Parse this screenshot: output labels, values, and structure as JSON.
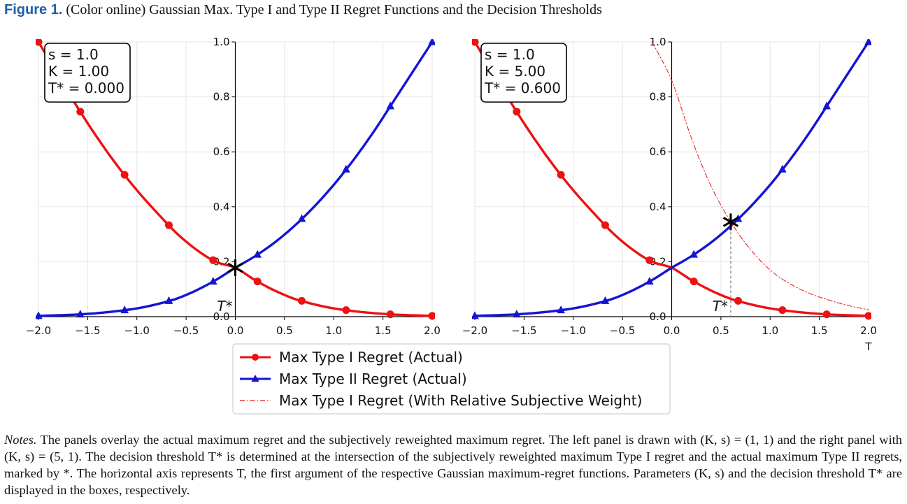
{
  "figure": {
    "label": "Figure 1.",
    "caption": "(Color online) Gaussian Max. Type I and Type II Regret Functions and the Decision Thresholds"
  },
  "notes": {
    "lead": "Notes.",
    "text": "The panels overlay the actual maximum regret and the subjectively reweighted maximum regret. The left panel is drawn with (K, s) = (1, 1) and the right panel with (K, s) = (5, 1). The decision threshold T* is determined at the intersection of the subjectively reweighted maximum Type I regret and the actual maximum Type II regrets, marked by *. The horizontal axis represents T, the first argument of the respective Gaussian maximum-regret functions. Parameters (K, s) and the decision threshold T* are displayed in the boxes, respectively."
  },
  "colors": {
    "type1": "#ee1111",
    "type2": "#1414d4",
    "weighted": "#ee1111",
    "marker": "#000000"
  },
  "legend": {
    "entries": [
      {
        "label": "Max Type I Regret (Actual)",
        "style": "red-line-dot"
      },
      {
        "label": "Max Type II Regret (Actual)",
        "style": "blue-line-triangle"
      },
      {
        "label": "Max Type I Regret (With Relative Subjective Weight)",
        "style": "red-dashdot"
      }
    ],
    "position": "below-center"
  },
  "chart_data": [
    {
      "type": "line",
      "panel": "left",
      "xlim": [
        -2.0,
        2.0
      ],
      "ylim": [
        0.0,
        1.0
      ],
      "xticks": [
        "−2.0",
        "−1.5",
        "−1.0",
        "−0.5",
        "0.0",
        "0.5",
        "1.0",
        "1.5",
        "2.0"
      ],
      "yticks": [
        "0.0",
        "0.2",
        "0.4",
        "0.6",
        "0.8",
        "1.0"
      ],
      "xlabel": "",
      "grid": true,
      "box": [
        "s = 1.0",
        "K = 1.00",
        "T* = 0.000"
      ],
      "threshold_label": "T*",
      "threshold": 0.0,
      "threshold_value": 0.178,
      "series": [
        {
          "name": "Max Type I Regret (Actual)",
          "x": [
            -2.0,
            -1.8,
            -1.6,
            -1.4,
            -1.2,
            -1.0,
            -0.8,
            -0.6,
            -0.4,
            -0.2,
            0.0,
            0.2,
            0.4,
            0.6,
            0.8,
            1.0,
            1.2,
            1.4,
            1.6,
            1.8,
            2.0
          ],
          "y": [
            1.0,
            0.88,
            0.76,
            0.65,
            0.55,
            0.46,
            0.38,
            0.305,
            0.245,
            0.2,
            0.178,
            0.133,
            0.095,
            0.065,
            0.045,
            0.03,
            0.02,
            0.013,
            0.008,
            0.005,
            0.003
          ],
          "markers_x": [
            -2.0,
            -1.575,
            -1.125,
            -0.675,
            -0.225,
            0.225,
            0.675,
            1.125,
            1.575,
            2.0
          ]
        },
        {
          "name": "Max Type II Regret (Actual)",
          "x": [
            -2.0,
            -1.8,
            -1.6,
            -1.4,
            -1.2,
            -1.0,
            -0.8,
            -0.6,
            -0.4,
            -0.2,
            0.0,
            0.2,
            0.4,
            0.6,
            0.8,
            1.0,
            1.2,
            1.4,
            1.6,
            1.8,
            2.0
          ],
          "y": [
            0.003,
            0.005,
            0.008,
            0.013,
            0.02,
            0.03,
            0.045,
            0.065,
            0.095,
            0.133,
            0.178,
            0.22,
            0.27,
            0.33,
            0.4,
            0.48,
            0.57,
            0.67,
            0.78,
            0.89,
            1.0
          ],
          "markers_x": [
            -2.0,
            -1.575,
            -1.125,
            -0.675,
            -0.225,
            0.225,
            0.675,
            1.125,
            1.575,
            2.0
          ]
        }
      ]
    },
    {
      "type": "line",
      "panel": "right",
      "xlim": [
        -2.0,
        2.0
      ],
      "ylim": [
        0.0,
        1.0
      ],
      "xticks": [
        "−2.0",
        "−1.5",
        "−1.0",
        "−0.5",
        "0.0",
        "0.5",
        "1.0",
        "1.5",
        "2.0"
      ],
      "yticks": [
        "0.0",
        "0.2",
        "0.4",
        "0.6",
        "0.8",
        "1.0"
      ],
      "xlabel": "T",
      "grid": true,
      "box": [
        "s = 1.0",
        "K = 5.00",
        "T* = 0.600"
      ],
      "threshold_label": "T*",
      "threshold": 0.6,
      "threshold_value": 0.345,
      "series": [
        {
          "name": "Max Type I Regret (Actual)",
          "x": [
            -2.0,
            -1.8,
            -1.6,
            -1.4,
            -1.2,
            -1.0,
            -0.8,
            -0.6,
            -0.4,
            -0.2,
            0.0,
            0.2,
            0.4,
            0.6,
            0.8,
            1.0,
            1.2,
            1.4,
            1.6,
            1.8,
            2.0
          ],
          "y": [
            1.0,
            0.88,
            0.76,
            0.65,
            0.55,
            0.46,
            0.38,
            0.305,
            0.245,
            0.2,
            0.178,
            0.133,
            0.095,
            0.065,
            0.045,
            0.03,
            0.02,
            0.013,
            0.008,
            0.005,
            0.003
          ],
          "markers_x": [
            -2.0,
            -1.575,
            -1.125,
            -0.675,
            -0.225,
            0.225,
            0.675,
            1.125,
            1.575,
            2.0
          ]
        },
        {
          "name": "Max Type II Regret (Actual)",
          "x": [
            -2.0,
            -1.8,
            -1.6,
            -1.4,
            -1.2,
            -1.0,
            -0.8,
            -0.6,
            -0.4,
            -0.2,
            0.0,
            0.2,
            0.4,
            0.6,
            0.8,
            1.0,
            1.2,
            1.4,
            1.6,
            1.8,
            2.0
          ],
          "y": [
            0.003,
            0.005,
            0.008,
            0.013,
            0.02,
            0.03,
            0.045,
            0.065,
            0.095,
            0.133,
            0.178,
            0.22,
            0.27,
            0.33,
            0.4,
            0.48,
            0.57,
            0.67,
            0.78,
            0.89,
            1.0
          ],
          "markers_x": [
            -2.0,
            -1.575,
            -1.125,
            -0.675,
            -0.225,
            0.225,
            0.675,
            1.125,
            1.575,
            2.0
          ]
        },
        {
          "name": "Max Type I Regret (With Relative Subjective Weight)",
          "x": [
            -0.2,
            0.0,
            0.2,
            0.4,
            0.6,
            0.8,
            1.0,
            1.2,
            1.4,
            1.6,
            1.8,
            2.0
          ],
          "y": [
            1.0,
            0.86,
            0.65,
            0.475,
            0.345,
            0.245,
            0.17,
            0.12,
            0.085,
            0.06,
            0.04,
            0.025
          ]
        }
      ]
    }
  ]
}
